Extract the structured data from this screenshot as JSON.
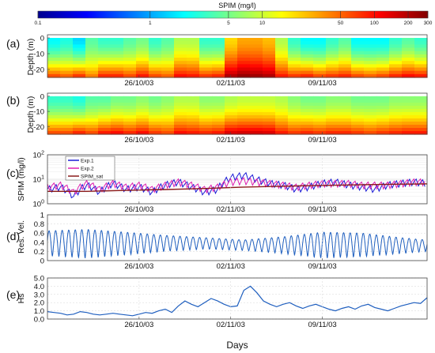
{
  "figure": {
    "colorbar": {
      "title": "SPIM (mg/l)",
      "ticks": [
        "0.1",
        "1",
        "5",
        "10",
        "50",
        "100",
        "200",
        "300"
      ],
      "tick_values": [
        0.1,
        1,
        5,
        10,
        50,
        100,
        200,
        300
      ],
      "range": [
        0.1,
        300
      ],
      "scale": "log"
    },
    "panels": [
      {
        "letter": "(a)",
        "ylabel": "Depth (m)"
      },
      {
        "letter": "(b)",
        "ylabel": "Depth (m)"
      },
      {
        "letter": "(c)",
        "ylabel": "SPIM (mg/l)"
      },
      {
        "letter": "(d)",
        "ylabel": "Res. Vel."
      },
      {
        "letter": "(e)",
        "ylabel": "Hs"
      }
    ],
    "date_ticks": [
      "26/10/03",
      "02/11/03",
      "09/11/03"
    ],
    "xlabel": "Days",
    "legend": [
      "Exp.1",
      "Exp.2",
      "SPIM_sat"
    ]
  },
  "chart_data": [
    {
      "type": "heatmap",
      "panel": "(a)",
      "ylabel": "Depth (m)",
      "y_ticks": [
        "0",
        "-10",
        "-20"
      ],
      "y_range": [
        -25,
        2
      ],
      "x_ticks": [
        "26/10/03",
        "02/11/03",
        "09/11/03"
      ],
      "x_range_days": [
        0,
        29
      ],
      "x_tick_days": [
        7,
        14,
        21
      ],
      "colormap": "jet",
      "color_scale": "log",
      "color_range_mgl": [
        0.1,
        300
      ],
      "surface_mgl": [
        2,
        2.5,
        1.5,
        4,
        3,
        3,
        4,
        5,
        3,
        4,
        8,
        8,
        3,
        3,
        20,
        30,
        30,
        25,
        8,
        3,
        2,
        2,
        3,
        4,
        2,
        2,
        2,
        3,
        4,
        3
      ],
      "bottom_mgl": [
        60,
        50,
        70,
        40,
        80,
        80,
        60,
        90,
        60,
        50,
        100,
        90,
        70,
        80,
        200,
        250,
        230,
        200,
        90,
        70,
        80,
        60,
        70,
        80,
        60,
        50,
        60,
        80,
        100,
        90
      ],
      "note": "columns are days 0-29; surface to bottom profile interpolated"
    },
    {
      "type": "heatmap",
      "panel": "(b)",
      "ylabel": "Depth (m)",
      "y_ticks": [
        "0",
        "-10",
        "-20"
      ],
      "y_range": [
        -25,
        2
      ],
      "x_ticks": [
        "26/10/03",
        "02/11/03",
        "09/11/03"
      ],
      "x_range_days": [
        0,
        29
      ],
      "x_tick_days": [
        7,
        14,
        21
      ],
      "colormap": "jet",
      "color_scale": "log",
      "color_range_mgl": [
        0.1,
        300
      ],
      "surface_mgl": [
        3,
        3,
        2.5,
        4,
        4,
        5,
        5,
        6,
        5,
        6,
        8,
        8,
        6,
        6,
        8,
        9,
        9,
        9,
        8,
        6,
        5,
        5,
        6,
        6,
        5,
        5,
        5,
        6,
        6,
        6
      ],
      "bottom_mgl": [
        60,
        60,
        80,
        60,
        90,
        100,
        80,
        100,
        70,
        60,
        100,
        90,
        80,
        90,
        140,
        150,
        150,
        140,
        90,
        70,
        80,
        70,
        80,
        80,
        70,
        60,
        70,
        80,
        90,
        90
      ]
    },
    {
      "type": "line",
      "panel": "(c)",
      "ylabel": "SPIM (mg/l)",
      "yscale": "log",
      "ylim": [
        1,
        100
      ],
      "y_ticks": [
        "10^0",
        "10^1",
        "10^2"
      ],
      "x_ticks": [
        "26/10/03",
        "02/11/03",
        "09/11/03"
      ],
      "x_range_days": [
        0,
        29
      ],
      "x_tick_days": [
        7,
        14,
        21
      ],
      "legend_placement": "top-left",
      "grid": true,
      "series": [
        {
          "name": "Exp.1",
          "color": "#1a1ad6",
          "x": [
            0,
            1,
            2,
            3,
            4,
            5,
            6,
            7,
            8,
            9,
            10,
            11,
            12,
            13,
            14,
            15,
            16,
            17,
            18,
            19,
            20,
            21,
            22,
            23,
            24,
            25,
            26,
            27,
            28,
            29
          ],
          "y": [
            4,
            5,
            2,
            6,
            3,
            7,
            4,
            5,
            3,
            6,
            8,
            5,
            3,
            4,
            12,
            15,
            10,
            7,
            6,
            4,
            5,
            7,
            8,
            6,
            5,
            4,
            6,
            7,
            8,
            7
          ]
        },
        {
          "name": "Exp.2",
          "color": "#e01fb0",
          "x": [
            0,
            1,
            2,
            3,
            4,
            5,
            6,
            7,
            8,
            9,
            10,
            11,
            12,
            13,
            14,
            15,
            16,
            17,
            18,
            19,
            20,
            21,
            22,
            23,
            24,
            25,
            26,
            27,
            28,
            29
          ],
          "y": [
            5,
            6,
            3,
            7,
            4,
            7,
            5,
            6,
            4,
            6,
            8,
            6,
            4,
            5,
            8,
            9,
            8,
            7,
            6,
            5,
            6,
            7,
            7,
            7,
            6,
            6,
            6,
            7,
            8,
            8
          ]
        },
        {
          "name": "SPIM_sat",
          "color": "#8b1a1a",
          "x": [
            0,
            3,
            6,
            9,
            12,
            15,
            18,
            21,
            24,
            27,
            29
          ],
          "y": [
            3.2,
            3.2,
            3.5,
            3.8,
            4.2,
            4.8,
            5.2,
            5.6,
            6.0,
            6.3,
            6.5
          ]
        }
      ]
    },
    {
      "type": "line",
      "panel": "(d)",
      "ylabel": "Res. Vel.",
      "ylim": [
        0,
        1
      ],
      "y_ticks": [
        "0",
        "0.2",
        "0.4",
        "0.6",
        "0.8",
        "1"
      ],
      "x_ticks": [
        "26/10/03",
        "02/11/03",
        "09/11/03"
      ],
      "x_range_days": [
        0,
        29
      ],
      "x_tick_days": [
        7,
        14,
        21
      ],
      "grid": true,
      "oscillation_period_days": 0.5,
      "envelope_days": [
        0,
        3,
        6,
        9,
        12,
        15,
        18,
        21,
        24,
        27,
        29
      ],
      "envelope_max": [
        0.65,
        0.68,
        0.62,
        0.55,
        0.5,
        0.45,
        0.52,
        0.62,
        0.6,
        0.5,
        0.45
      ],
      "envelope_min": [
        0.1,
        0.05,
        0.12,
        0.2,
        0.25,
        0.22,
        0.15,
        0.05,
        0.08,
        0.15,
        0.2
      ],
      "series": [
        {
          "color": "#1f5fbf"
        }
      ]
    },
    {
      "type": "line",
      "panel": "(e)",
      "ylabel": "Hs",
      "ylim": [
        0,
        5
      ],
      "y_ticks": [
        "0.0",
        "1.0",
        "2.0",
        "3.0",
        "4.0",
        "5.0"
      ],
      "x_ticks": [
        "26/10/03",
        "02/11/03",
        "09/11/03"
      ],
      "x_range_days": [
        0,
        29
      ],
      "x_tick_days": [
        7,
        14,
        21
      ],
      "xlabel": "Days",
      "grid": true,
      "series": [
        {
          "color": "#1f5fbf",
          "x": [
            0,
            0.5,
            1,
            1.5,
            2,
            2.5,
            3,
            3.5,
            4,
            4.5,
            5,
            5.5,
            6,
            6.5,
            7,
            7.5,
            8,
            8.5,
            9,
            9.5,
            10,
            10.5,
            11,
            11.5,
            12,
            12.5,
            13,
            13.5,
            14,
            14.5,
            15,
            15.5,
            16,
            16.5,
            17,
            17.5,
            18,
            18.5,
            19,
            19.5,
            20,
            20.5,
            21,
            21.5,
            22,
            22.5,
            23,
            23.5,
            24,
            24.5,
            25,
            25.5,
            26,
            26.5,
            27,
            27.5,
            28,
            28.5,
            29
          ],
          "y": [
            0.9,
            0.8,
            0.7,
            0.5,
            0.6,
            0.9,
            0.8,
            0.6,
            0.5,
            0.6,
            0.7,
            0.6,
            0.5,
            0.4,
            0.6,
            0.8,
            0.7,
            1.0,
            1.2,
            0.8,
            1.6,
            2.2,
            1.8,
            1.5,
            2.0,
            2.5,
            2.2,
            1.8,
            1.5,
            1.6,
            3.5,
            4.0,
            3.2,
            2.2,
            1.8,
            1.5,
            1.8,
            2.0,
            1.6,
            1.3,
            1.6,
            1.8,
            1.5,
            1.2,
            1.0,
            1.3,
            1.5,
            1.2,
            1.6,
            1.8,
            1.4,
            1.2,
            1.0,
            1.3,
            1.6,
            1.8,
            2.0,
            1.9,
            2.6
          ]
        }
      ]
    }
  ]
}
